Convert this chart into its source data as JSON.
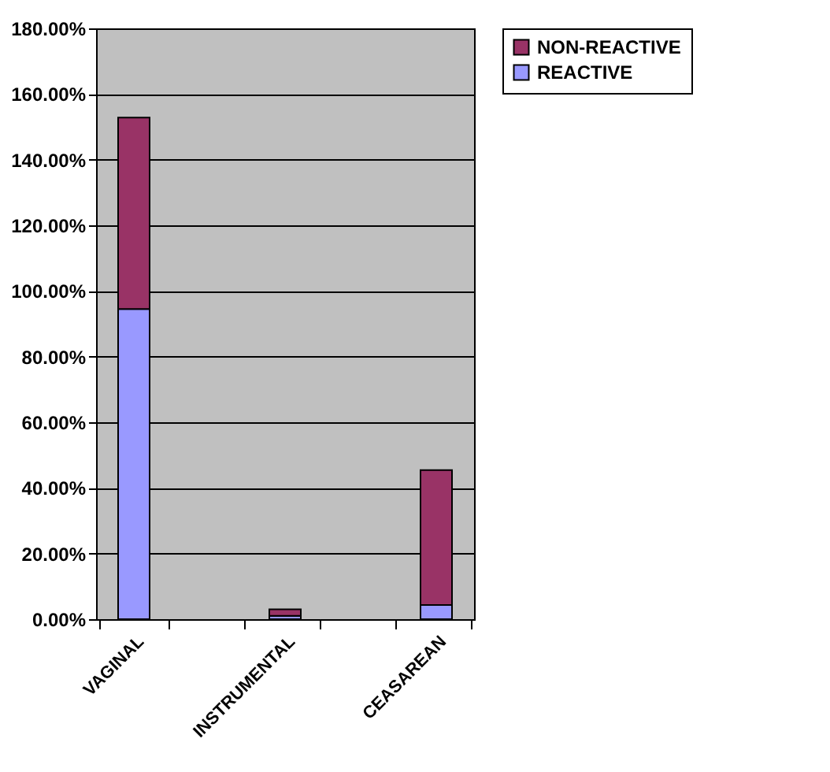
{
  "chart_data": {
    "type": "bar",
    "stacked": true,
    "categories": [
      "VAGINAL",
      null,
      "INSTRUMENTAL",
      null,
      "CEASAREAN"
    ],
    "series": [
      {
        "name": "REACTIVE",
        "color": "#9999ff",
        "values": [
          94.5,
          null,
          1,
          null,
          4.3
        ]
      },
      {
        "name": "NON-REACTIVE",
        "color": "#993366",
        "values": [
          58.3,
          null,
          2,
          null,
          41.1
        ]
      }
    ],
    "ylim": [
      0,
      180
    ],
    "yticks": [
      {
        "value": 0,
        "label": "0.00%"
      },
      {
        "value": 20,
        "label": "20.00%"
      },
      {
        "value": 40,
        "label": "40.00%"
      },
      {
        "value": 60,
        "label": "60.00%"
      },
      {
        "value": 80,
        "label": "80.00%"
      },
      {
        "value": 100,
        "label": "100.00%"
      },
      {
        "value": 120,
        "label": "120.00%"
      },
      {
        "value": 140,
        "label": "140.00%"
      },
      {
        "value": 160,
        "label": "160.00%"
      },
      {
        "value": 180,
        "label": "180.00%"
      }
    ],
    "grid": "y",
    "legend": "right"
  }
}
